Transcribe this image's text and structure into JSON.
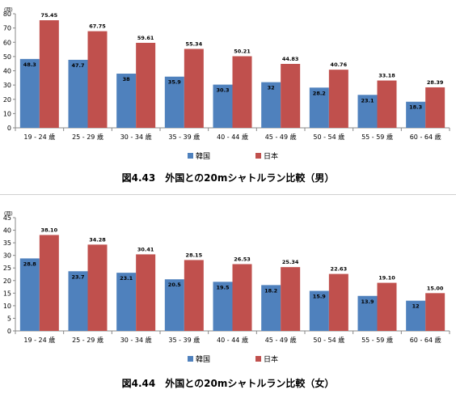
{
  "colors": {
    "korea": "#4F81BD",
    "japan": "#C0504D"
  },
  "chart_data": [
    {
      "type": "bar",
      "caption": "図4.43　外国との20mシャトルラン比較（男）",
      "unit": "(回)",
      "categories": [
        "19 - 24 歳",
        "25 - 29 歳",
        "30 - 34 歳",
        "35 - 39 歳",
        "40 - 44 歳",
        "45 - 49 歳",
        "50 - 54 歳",
        "55 - 59 歳",
        "60 - 64 歳"
      ],
      "ylim": [
        0,
        80
      ],
      "yticks": [
        0,
        10,
        20,
        30,
        40,
        50,
        60,
        70,
        80
      ],
      "series": [
        {
          "name": "韓国",
          "values": [
            48.3,
            47.7,
            38,
            35.9,
            30.3,
            32,
            28.2,
            23.1,
            18.3
          ],
          "labels": [
            "48.3",
            "47.7",
            "38",
            "35.9",
            "30.3",
            "32",
            "28.2",
            "23.1",
            "18.3"
          ]
        },
        {
          "name": "日本",
          "values": [
            75.45,
            67.75,
            59.61,
            55.34,
            50.21,
            44.83,
            40.76,
            33.18,
            28.39
          ],
          "labels": [
            "75.45",
            "67.75",
            "59.61",
            "55.34",
            "50.21",
            "44.83",
            "40.76",
            "33.18",
            "28.39"
          ]
        }
      ],
      "legend": "bottom"
    },
    {
      "type": "bar",
      "caption": "図4.44　外国との20mシャトルラン比較（女）",
      "unit": "(回)",
      "categories": [
        "19 - 24 歳",
        "25 - 29 歳",
        "30 - 34 歳",
        "35 - 39 歳",
        "40 - 44 歳",
        "45 - 49 歳",
        "50 - 54 歳",
        "55 - 59 歳",
        "60 - 64 歳"
      ],
      "ylim": [
        0,
        45
      ],
      "yticks": [
        0,
        5,
        10,
        15,
        20,
        25,
        30,
        35,
        40,
        45
      ],
      "series": [
        {
          "name": "韓国",
          "values": [
            28.8,
            23.7,
            23.1,
            20.5,
            19.5,
            18.2,
            15.9,
            13.9,
            12
          ],
          "labels": [
            "28.8",
            "23.7",
            "23.1",
            "20.5",
            "19.5",
            "18.2",
            "15.9",
            "13.9",
            "12"
          ]
        },
        {
          "name": "日本",
          "values": [
            38.1,
            34.28,
            30.41,
            28.15,
            26.53,
            25.34,
            22.63,
            19.1,
            15.0
          ],
          "labels": [
            "38.10",
            "34.28",
            "30.41",
            "28.15",
            "26.53",
            "25.34",
            "22.63",
            "19.10",
            "15.00"
          ]
        }
      ],
      "legend": "bottom"
    }
  ]
}
